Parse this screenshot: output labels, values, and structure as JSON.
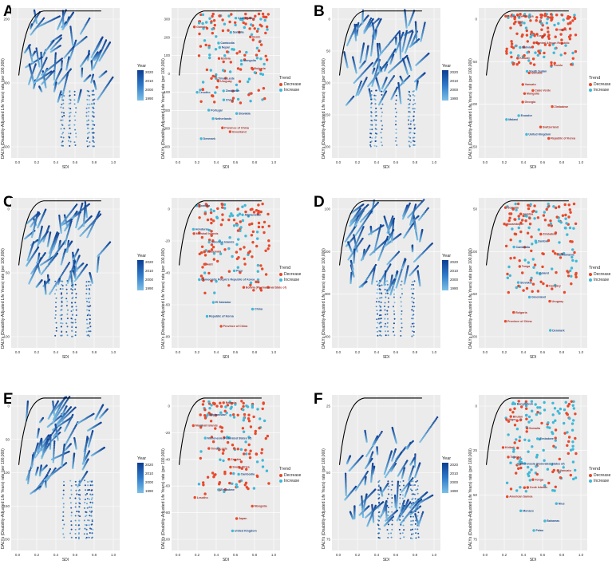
{
  "panels": [
    {
      "letter": "A",
      "ylabel": "DALYs (Disability-Adjusted Life Years) rate (per 100,000)",
      "xlabel": "SDI",
      "left_yticks": [
        "200",
        "400",
        "600"
      ],
      "right_yticks": [
        "300",
        "200",
        "100",
        "0",
        "-100",
        "-200",
        "-300",
        "-400"
      ],
      "years": [
        "2020",
        "2010",
        "2000",
        "1990"
      ],
      "countries": [
        "Côte d'Ivoire",
        "Gambia",
        "Somalia",
        "Benin",
        "Cambodia",
        "Nepal",
        "Bolivia",
        "Mongolia",
        "Bulgaria",
        "Timor-Leste",
        "Uruguay",
        "Zimbabwe",
        "Lesotho",
        "China",
        "Portugal",
        "Slovakia",
        "Netherlands",
        "Province of China",
        "Greenland",
        "Denmark"
      ]
    },
    {
      "letter": "B",
      "ylabel": "DALYs (Disability-Adjusted Life Years) rate (per 100,000)",
      "xlabel": "SDI",
      "left_yticks": [
        "0",
        "50",
        "100",
        "150",
        "200"
      ],
      "right_yticks": [
        "0",
        "-50",
        "-100",
        "-150"
      ],
      "years": [
        "2020",
        "2010",
        "2000",
        "1990"
      ],
      "countries": [
        "Papua New Guinea",
        "Mali",
        "Nauru",
        "Tonga",
        "Central African Republic",
        "Bolivia",
        "Kiribati",
        "Tuvalu",
        "South Sudan",
        "Somalia",
        "Vanuatu",
        "Cabo Verde",
        "Mongolia",
        "Georgia",
        "Zimbabwe",
        "Ecuador",
        "Malawi",
        "Switzerland",
        "United Kingdom",
        "Republic of Korea"
      ]
    },
    {
      "letter": "C",
      "ylabel": "DALYs (Disability-Adjusted Life Years) rate (per 100,000)",
      "xlabel": "SDI",
      "left_yticks": [
        "0",
        "50",
        "100"
      ],
      "right_yticks": [
        "0",
        "-20",
        "-40",
        "-60",
        "-80"
      ],
      "years": [
        "2020",
        "2010",
        "2000",
        "1990"
      ],
      "countries": [
        "Somalia",
        "Afghanistan",
        "Honduras",
        "Marshall Islands",
        "Solomon Islands",
        "Guatemala",
        "Haiti",
        "Peru",
        "Democratic People's Republic of Korea",
        "Bolivia (Plurinational State of)",
        "El Salvador",
        "China",
        "Republic of Korea",
        "Province of China"
      ]
    },
    {
      "letter": "D",
      "ylabel": "DALYs (Disability-Adjusted Life Years) rate (per 100,000)",
      "xlabel": "SDI",
      "left_yticks": [
        "100",
        "200",
        "300",
        "400"
      ],
      "right_yticks": [
        "50",
        "100",
        "150",
        "200"
      ],
      "years": [
        "2020",
        "2010",
        "2000",
        "1990"
      ],
      "countries": [
        "Somalia",
        "Gambia",
        "Mozambique",
        "Zimbabwe",
        "Zambia",
        "Cambodia",
        "Romania",
        "Tonga",
        "Poland",
        "Slovakia",
        "Hungary",
        "Greenland",
        "Uruguay",
        "Bulgaria",
        "Province of China",
        "Denmark"
      ]
    },
    {
      "letter": "E",
      "ylabel": "DALYs (Disability-Adjusted Life Years) rate (per 100,000)",
      "xlabel": "SDI",
      "left_yticks": [
        "0",
        "50",
        "100",
        "150",
        "200"
      ],
      "right_yticks": [
        "0",
        "-20",
        "-40",
        "-60",
        "-80",
        "-100"
      ],
      "years": [
        "2020",
        "2010",
        "2000",
        "1990"
      ],
      "countries": [
        "Rwanda",
        "Afghanistan",
        "Marshall Islands",
        "Micronesia (Federated States of)",
        "Timor-Leste",
        "Zambia",
        "South Africa",
        "Cambodia",
        "Zimbabwe",
        "Lesotho",
        "Mongolia",
        "Japan",
        "United Kingdom"
      ]
    },
    {
      "letter": "F",
      "ylabel": "DALYs (Disability-Adjusted Life Years) rate (per 100,000)",
      "xlabel": "SDI",
      "left_yticks": [
        "25",
        "50",
        "75"
      ],
      "right_yticks": [
        "0",
        "25",
        "50",
        "75"
      ],
      "years": [
        "2020",
        "2010",
        "2000",
        "1990"
      ],
      "countries": [
        "Bangladesh",
        "Bhutan",
        "Niger",
        "Somalia",
        "Zimbabwe",
        "Kiribati",
        "Tokelau",
        "Micronesia (Federated States of)",
        "Vanuatu",
        "Tonga",
        "Cook Islands",
        "American Samoa",
        "Niue",
        "Monaco",
        "Bahamas",
        "Palau"
      ]
    }
  ],
  "legend": {
    "year_title": "Year",
    "trend_title": "Trend",
    "decrease": "Decrease",
    "increase": "Increase"
  },
  "x_ticks": [
    "0.0",
    "0.2",
    "0.4",
    "0.6",
    "0.8",
    "1.0"
  ],
  "colors": {
    "decrease": "#e8492c",
    "increase": "#3fb8d8",
    "year_dark": "#0b3d91",
    "year_light": "#7cc0e6",
    "frontier": "#000000",
    "panel_bg": "#ebebeb",
    "grid": "#ffffff"
  },
  "chart_data": [
    {
      "panel": "A",
      "type": "scatter",
      "xlabel": "SDI",
      "xlim": [
        0,
        1
      ],
      "series": [
        {
          "name": "1990"
        },
        {
          "name": "2000"
        },
        {
          "name": "2010"
        },
        {
          "name": "2020"
        }
      ]
    },
    {
      "panel": "A",
      "type": "scatter",
      "xlabel": "SDI",
      "xlim": [
        0,
        1
      ],
      "series": [
        {
          "name": "Decrease"
        },
        {
          "name": "Increase"
        }
      ]
    },
    {
      "panel": "B",
      "type": "scatter",
      "xlabel": "SDI",
      "xlim": [
        0,
        1
      ],
      "series": [
        {
          "name": "1990"
        },
        {
          "name": "2000"
        },
        {
          "name": "2010"
        },
        {
          "name": "2020"
        }
      ]
    },
    {
      "panel": "B",
      "type": "scatter",
      "xlabel": "SDI",
      "xlim": [
        0,
        1
      ],
      "series": [
        {
          "name": "Decrease"
        },
        {
          "name": "Increase"
        }
      ]
    },
    {
      "panel": "C",
      "type": "scatter",
      "xlabel": "SDI",
      "xlim": [
        0,
        1
      ],
      "series": [
        {
          "name": "1990"
        },
        {
          "name": "2000"
        },
        {
          "name": "2010"
        },
        {
          "name": "2020"
        }
      ]
    },
    {
      "panel": "C",
      "type": "scatter",
      "xlabel": "SDI",
      "xlim": [
        0,
        1
      ],
      "series": [
        {
          "name": "Decrease"
        },
        {
          "name": "Increase"
        }
      ]
    },
    {
      "panel": "D",
      "type": "scatter",
      "xlabel": "SDI",
      "xlim": [
        0,
        1
      ],
      "series": [
        {
          "name": "1990"
        },
        {
          "name": "2000"
        },
        {
          "name": "2010"
        },
        {
          "name": "2020"
        }
      ]
    },
    {
      "panel": "D",
      "type": "scatter",
      "xlabel": "SDI",
      "xlim": [
        0,
        1
      ],
      "series": [
        {
          "name": "Decrease"
        },
        {
          "name": "Increase"
        }
      ]
    },
    {
      "panel": "E",
      "type": "scatter",
      "xlabel": "SDI",
      "xlim": [
        0,
        1
      ],
      "series": [
        {
          "name": "1990"
        },
        {
          "name": "2000"
        },
        {
          "name": "2010"
        },
        {
          "name": "2020"
        }
      ]
    },
    {
      "panel": "E",
      "type": "scatter",
      "xlabel": "SDI",
      "xlim": [
        0,
        1
      ],
      "series": [
        {
          "name": "Decrease"
        },
        {
          "name": "Increase"
        }
      ]
    },
    {
      "panel": "F",
      "type": "scatter",
      "xlabel": "SDI",
      "xlim": [
        0,
        1
      ],
      "series": [
        {
          "name": "1990"
        },
        {
          "name": "2000"
        },
        {
          "name": "2010"
        },
        {
          "name": "2020"
        }
      ]
    },
    {
      "panel": "F",
      "type": "scatter",
      "xlabel": "SDI",
      "xlim": [
        0,
        1
      ],
      "series": [
        {
          "name": "Decrease"
        },
        {
          "name": "Increase"
        }
      ]
    }
  ]
}
